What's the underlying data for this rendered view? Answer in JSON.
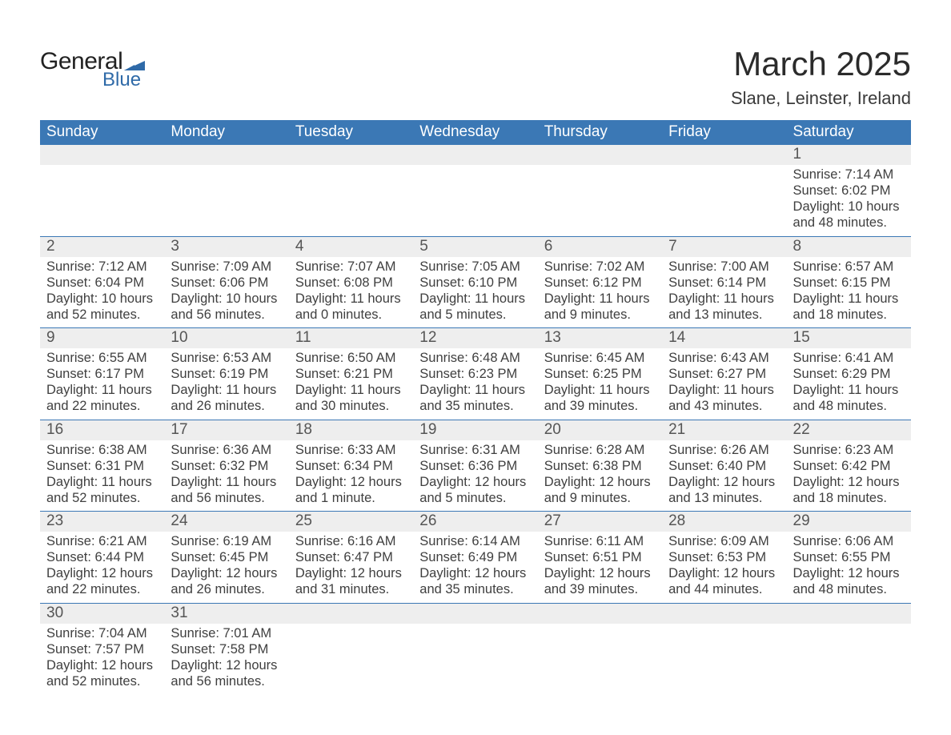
{
  "logo": {
    "text1": "General",
    "text2": "Blue",
    "mark_color": "#2f6aa8"
  },
  "title": "March 2025",
  "subtitle": "Slane, Leinster, Ireland",
  "header_bg": "#3b78b5",
  "daynum_bg": "#eeeeee",
  "border_color": "#3b78b5",
  "text_color": "#3a3a3a",
  "font_family": "Arial",
  "title_fontsize": 42,
  "subtitle_fontsize": 22,
  "header_fontsize": 19,
  "cell_fontsize": 16.5,
  "columns": [
    "Sunday",
    "Monday",
    "Tuesday",
    "Wednesday",
    "Thursday",
    "Friday",
    "Saturday"
  ],
  "labels": {
    "sunrise": "Sunrise:",
    "sunset": "Sunset:",
    "daylight": "Daylight:"
  },
  "weeks": [
    [
      null,
      null,
      null,
      null,
      null,
      null,
      {
        "n": "1",
        "sr": "7:14 AM",
        "ss": "6:02 PM",
        "dl": "10 hours and 48 minutes."
      }
    ],
    [
      {
        "n": "2",
        "sr": "7:12 AM",
        "ss": "6:04 PM",
        "dl": "10 hours and 52 minutes."
      },
      {
        "n": "3",
        "sr": "7:09 AM",
        "ss": "6:06 PM",
        "dl": "10 hours and 56 minutes."
      },
      {
        "n": "4",
        "sr": "7:07 AM",
        "ss": "6:08 PM",
        "dl": "11 hours and 0 minutes."
      },
      {
        "n": "5",
        "sr": "7:05 AM",
        "ss": "6:10 PM",
        "dl": "11 hours and 5 minutes."
      },
      {
        "n": "6",
        "sr": "7:02 AM",
        "ss": "6:12 PM",
        "dl": "11 hours and 9 minutes."
      },
      {
        "n": "7",
        "sr": "7:00 AM",
        "ss": "6:14 PM",
        "dl": "11 hours and 13 minutes."
      },
      {
        "n": "8",
        "sr": "6:57 AM",
        "ss": "6:15 PM",
        "dl": "11 hours and 18 minutes."
      }
    ],
    [
      {
        "n": "9",
        "sr": "6:55 AM",
        "ss": "6:17 PM",
        "dl": "11 hours and 22 minutes."
      },
      {
        "n": "10",
        "sr": "6:53 AM",
        "ss": "6:19 PM",
        "dl": "11 hours and 26 minutes."
      },
      {
        "n": "11",
        "sr": "6:50 AM",
        "ss": "6:21 PM",
        "dl": "11 hours and 30 minutes."
      },
      {
        "n": "12",
        "sr": "6:48 AM",
        "ss": "6:23 PM",
        "dl": "11 hours and 35 minutes."
      },
      {
        "n": "13",
        "sr": "6:45 AM",
        "ss": "6:25 PM",
        "dl": "11 hours and 39 minutes."
      },
      {
        "n": "14",
        "sr": "6:43 AM",
        "ss": "6:27 PM",
        "dl": "11 hours and 43 minutes."
      },
      {
        "n": "15",
        "sr": "6:41 AM",
        "ss": "6:29 PM",
        "dl": "11 hours and 48 minutes."
      }
    ],
    [
      {
        "n": "16",
        "sr": "6:38 AM",
        "ss": "6:31 PM",
        "dl": "11 hours and 52 minutes."
      },
      {
        "n": "17",
        "sr": "6:36 AM",
        "ss": "6:32 PM",
        "dl": "11 hours and 56 minutes."
      },
      {
        "n": "18",
        "sr": "6:33 AM",
        "ss": "6:34 PM",
        "dl": "12 hours and 1 minute."
      },
      {
        "n": "19",
        "sr": "6:31 AM",
        "ss": "6:36 PM",
        "dl": "12 hours and 5 minutes."
      },
      {
        "n": "20",
        "sr": "6:28 AM",
        "ss": "6:38 PM",
        "dl": "12 hours and 9 minutes."
      },
      {
        "n": "21",
        "sr": "6:26 AM",
        "ss": "6:40 PM",
        "dl": "12 hours and 13 minutes."
      },
      {
        "n": "22",
        "sr": "6:23 AM",
        "ss": "6:42 PM",
        "dl": "12 hours and 18 minutes."
      }
    ],
    [
      {
        "n": "23",
        "sr": "6:21 AM",
        "ss": "6:44 PM",
        "dl": "12 hours and 22 minutes."
      },
      {
        "n": "24",
        "sr": "6:19 AM",
        "ss": "6:45 PM",
        "dl": "12 hours and 26 minutes."
      },
      {
        "n": "25",
        "sr": "6:16 AM",
        "ss": "6:47 PM",
        "dl": "12 hours and 31 minutes."
      },
      {
        "n": "26",
        "sr": "6:14 AM",
        "ss": "6:49 PM",
        "dl": "12 hours and 35 minutes."
      },
      {
        "n": "27",
        "sr": "6:11 AM",
        "ss": "6:51 PM",
        "dl": "12 hours and 39 minutes."
      },
      {
        "n": "28",
        "sr": "6:09 AM",
        "ss": "6:53 PM",
        "dl": "12 hours and 44 minutes."
      },
      {
        "n": "29",
        "sr": "6:06 AM",
        "ss": "6:55 PM",
        "dl": "12 hours and 48 minutes."
      }
    ],
    [
      {
        "n": "30",
        "sr": "7:04 AM",
        "ss": "7:57 PM",
        "dl": "12 hours and 52 minutes."
      },
      {
        "n": "31",
        "sr": "7:01 AM",
        "ss": "7:58 PM",
        "dl": "12 hours and 56 minutes."
      },
      null,
      null,
      null,
      null,
      null
    ]
  ]
}
